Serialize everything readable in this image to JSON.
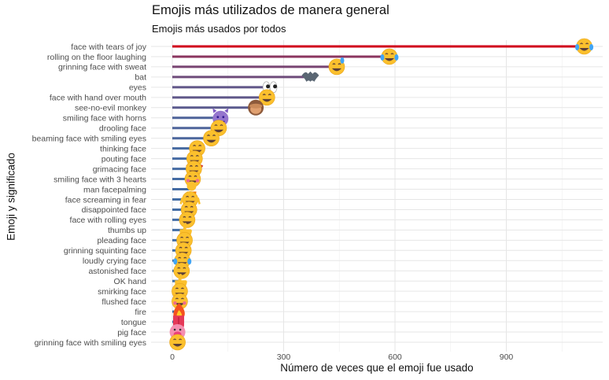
{
  "title": "Emojis más utilizados de manera general",
  "subtitle": "Emojis más usados por todos",
  "chart_data": {
    "type": "bar",
    "title": "Emojis más utilizados de manera general",
    "subtitle": "Emojis más usados por todos",
    "xlabel": "Número de veces que el emoji fue usado",
    "ylabel": "Emoji y significado",
    "xlim": [
      -30,
      1170
    ],
    "xticks": [
      0,
      300,
      600,
      900
    ],
    "grid": true,
    "color_low": "#3f6fa8",
    "color_high": "#d0021b",
    "categories": [
      "face with tears of joy",
      "rolling on the floor laughing",
      "grinning face with sweat",
      "bat",
      "eyes",
      "face with hand over mouth",
      "see-no-evil monkey",
      "smiling face with horns",
      "drooling face",
      "beaming face with smiling eyes",
      "thinking face",
      "pouting face",
      "grimacing face",
      "smiling face with 3 hearts",
      "man facepalming",
      "face screaming in fear",
      "disappointed face",
      "face with rolling eyes",
      "thumbs up",
      "pleading face",
      "grinning squinting face",
      "loudly crying face",
      "astonished face",
      "OK hand",
      "smirking face",
      "flushed face",
      "fire",
      "tongue",
      "pig face",
      "grinning face with smiling eyes"
    ],
    "values": [
      1110,
      585,
      443,
      372,
      262,
      255,
      225,
      130,
      125,
      105,
      67,
      60,
      58,
      55,
      52,
      48,
      45,
      40,
      35,
      33,
      30,
      27,
      25,
      22,
      20,
      20,
      18,
      17,
      14,
      14
    ],
    "icons": [
      "face-with-tears-of-joy-emoji",
      "rolling-on-floor-laughing-emoji",
      "grinning-face-with-sweat-emoji",
      "bat-emoji",
      "eyes-emoji",
      "face-with-hand-over-mouth-emoji",
      "see-no-evil-monkey-emoji",
      "smiling-face-with-horns-emoji",
      "drooling-face-emoji",
      "beaming-face-emoji",
      "thinking-face-emoji",
      "pouting-face-emoji",
      "grimacing-face-emoji",
      "smiling-face-with-hearts-emoji",
      "man-facepalming-emoji",
      "face-screaming-emoji",
      "disappointed-face-emoji",
      "rolling-eyes-emoji",
      "thumbs-up-emoji",
      "pleading-face-emoji",
      "grinning-squinting-emoji",
      "loudly-crying-emoji",
      "astonished-face-emoji",
      "ok-hand-emoji",
      "smirking-face-emoji",
      "flushed-face-emoji",
      "fire-emoji",
      "tongue-emoji",
      "pig-face-emoji",
      "grinning-smiling-eyes-emoji"
    ]
  }
}
